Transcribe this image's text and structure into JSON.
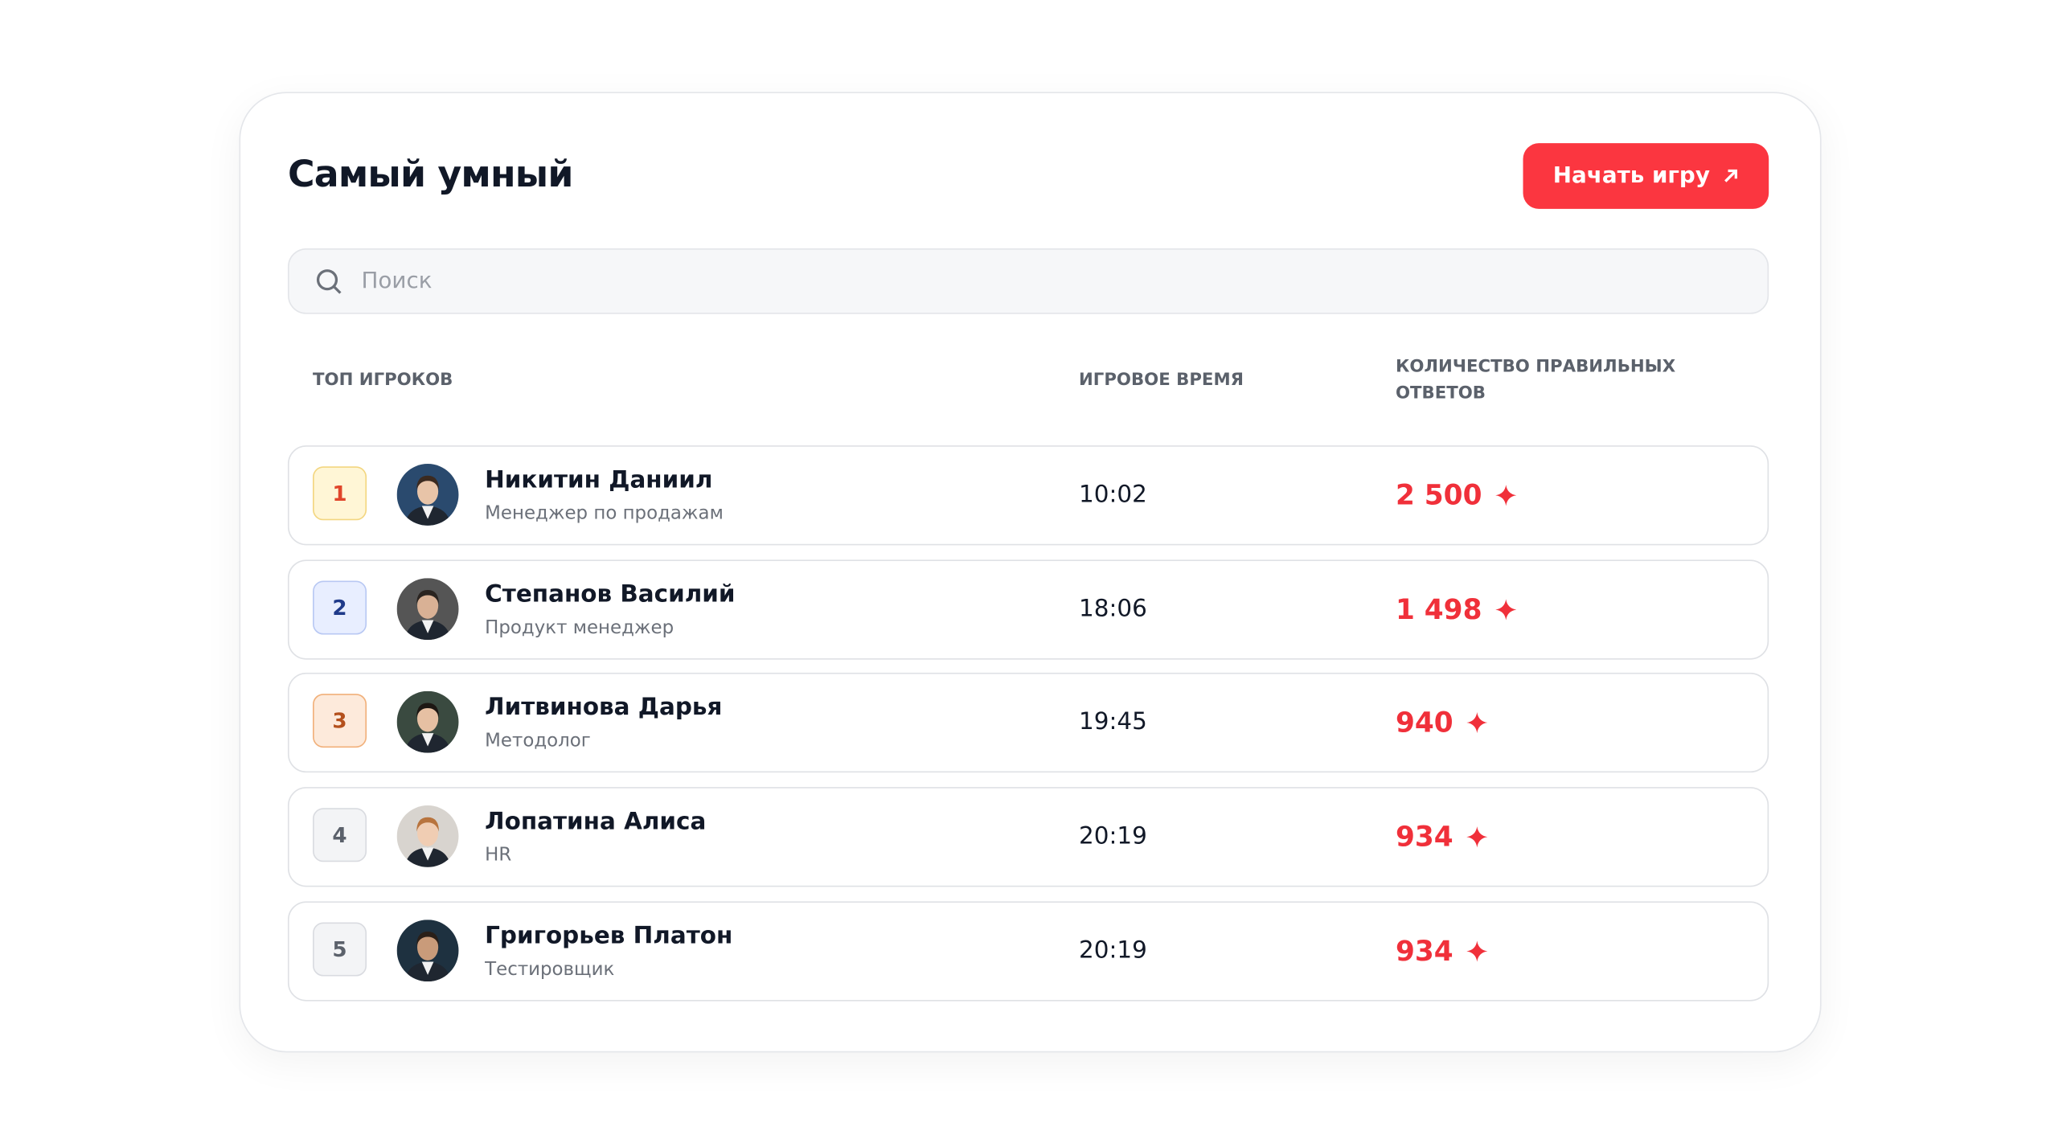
{
  "header": {
    "title": "Самый умный",
    "button": "Начать игру"
  },
  "search": {
    "placeholder": "Поиск"
  },
  "table": {
    "columns": [
      "ТОП ИГРОКОВ",
      "ИГРОВОЕ ВРЕМЯ",
      "КОЛИЧЕСТВО ПРАВИЛЬНЫХ ОТВЕТОВ"
    ],
    "rows": [
      {
        "rank": "1",
        "name": "Никитин Даниил",
        "role": "Менеджер по продажам",
        "time": "10:02",
        "score": "2 500"
      },
      {
        "rank": "2",
        "name": "Степанов Василий",
        "role": "Продукт менеджер",
        "time": "18:06",
        "score": "1 498"
      },
      {
        "rank": "3",
        "name": "Литвинова Дарья",
        "role": "Методолог",
        "time": "19:45",
        "score": "940"
      },
      {
        "rank": "4",
        "name": "Лопатина Алиса",
        "role": "HR",
        "time": "20:19",
        "score": "934"
      },
      {
        "rank": "5",
        "name": "Григорьев Платон",
        "role": "Тестировщик",
        "time": "20:19",
        "score": "934"
      }
    ]
  }
}
